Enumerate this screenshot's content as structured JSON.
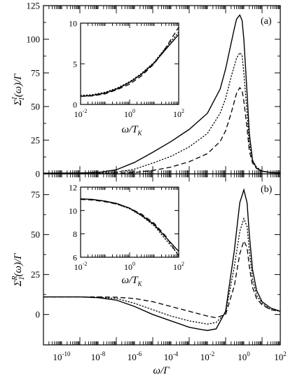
{
  "colors": {
    "ink": "#000000",
    "background": "#ffffff"
  },
  "chart_data": [
    {
      "panel": "a",
      "type": "line",
      "panel_label": "(a)",
      "xlabel": "",
      "ylabel_symbol": "Σ",
      "ylabel_sub": "1",
      "ylabel_sup": "I",
      "ylabel_rest": "(ω)/Γ",
      "x_scale": "log",
      "xlim": [
        1e-11,
        100
      ],
      "ylim": [
        0,
        125
      ],
      "y_ticks": [
        0,
        25,
        50,
        75,
        100,
        125
      ],
      "y_tick_labels": [
        "0",
        "25",
        "50",
        "75",
        "100",
        "125"
      ],
      "series": [
        {
          "style": "solid",
          "x": [
            1e-11,
            1e-09,
            1e-08,
            1e-07,
            1e-06,
            1e-05,
            0.0001,
            0.001,
            0.01,
            0.05,
            0.1,
            0.2,
            0.3,
            0.4,
            0.6,
            0.8,
            1,
            1.5,
            2,
            3,
            5,
            10,
            30,
            100
          ],
          "y": [
            0.5,
            0.6,
            1.0,
            3.0,
            8.5,
            16,
            24,
            33,
            45,
            63,
            78,
            97,
            108,
            115,
            118,
            114,
            100,
            60,
            30,
            10,
            4,
            2,
            1,
            0.5
          ]
        },
        {
          "style": "dotted",
          "x": [
            1e-11,
            1e-09,
            1e-08,
            1e-07,
            1e-06,
            1e-05,
            0.0001,
            0.001,
            0.01,
            0.05,
            0.1,
            0.2,
            0.4,
            0.6,
            0.8,
            1,
            1.5,
            2,
            3,
            5,
            10,
            30,
            100
          ],
          "y": [
            0.3,
            0.3,
            0.5,
            1.2,
            3.5,
            8,
            13,
            20,
            30,
            45,
            56,
            72,
            86,
            90,
            88,
            75,
            45,
            22,
            10,
            5,
            2,
            1,
            0.5
          ]
        },
        {
          "style": "dashed",
          "x": [
            1e-11,
            1e-08,
            1e-07,
            1e-06,
            1e-05,
            0.0001,
            0.001,
            0.01,
            0.05,
            0.1,
            0.2,
            0.4,
            0.6,
            0.8,
            1,
            1.5,
            2,
            3,
            5,
            10,
            30,
            100
          ],
          "y": [
            0.2,
            0.2,
            0.4,
            1.0,
            2.5,
            5,
            9,
            15,
            24,
            32,
            45,
            60,
            64,
            62,
            54,
            34,
            17,
            8,
            4,
            2,
            1,
            0.5
          ]
        }
      ],
      "inset": {
        "xlabel_symbol": "ω",
        "xlabel_rest": "/T",
        "xlabel_sub": "K",
        "x_scale": "log",
        "xlim": [
          0.01,
          100
        ],
        "ylim": [
          0,
          10
        ],
        "x_tick_mantissa": [
          "10",
          "10",
          "10"
        ],
        "x_tick_exponents": [
          "-2",
          "0",
          "2"
        ],
        "y_ticks": [
          0,
          5,
          10
        ],
        "y_tick_labels": [
          "0",
          "5",
          "10"
        ],
        "series": [
          {
            "style": "solid",
            "x": [
              0.01,
              0.03,
              0.1,
              0.3,
              1,
              3,
              10,
              30,
              100
            ],
            "y": [
              1.0,
              1.1,
              1.4,
              1.9,
              2.7,
              3.7,
              5.1,
              6.8,
              8.6
            ]
          },
          {
            "style": "dotted",
            "x": [
              0.01,
              0.03,
              0.1,
              0.3,
              1,
              3,
              10,
              30,
              100
            ],
            "y": [
              1.1,
              1.2,
              1.5,
              2.0,
              2.8,
              3.8,
              5.2,
              7.0,
              8.9
            ]
          },
          {
            "style": "dashed",
            "x": [
              0.01,
              0.03,
              0.1,
              0.3,
              1,
              3,
              10,
              30,
              100
            ],
            "y": [
              1.0,
              1.05,
              1.3,
              1.8,
              2.5,
              3.5,
              5.0,
              7.0,
              9.5
            ]
          }
        ]
      }
    },
    {
      "panel": "b",
      "type": "line",
      "panel_label": "(b)",
      "xlabel_symbol": "ω",
      "xlabel_rest": "/Γ",
      "ylabel_symbol": "Σ",
      "ylabel_sub": "1",
      "ylabel_sup": "R",
      "ylabel_rest": "(ω)/Γ",
      "x_scale": "log",
      "xlim": [
        1e-11,
        100
      ],
      "ylim": [
        -19,
        88
      ],
      "x_tick_mantissa": [
        "10",
        "10",
        "10",
        "10",
        "10",
        "10",
        "10"
      ],
      "x_tick_exponents": [
        "-10",
        "-8",
        "-6",
        "-4",
        "-2",
        "0",
        "2"
      ],
      "x_ticks": [
        1e-10,
        1e-08,
        1e-06,
        0.0001,
        0.01,
        1,
        100
      ],
      "y_ticks": [
        0,
        25,
        50,
        75
      ],
      "y_tick_labels": [
        "0",
        "25",
        "50",
        "75"
      ],
      "series": [
        {
          "style": "solid",
          "x": [
            1e-11,
            1e-09,
            1e-08,
            1e-07,
            1e-06,
            1e-05,
            0.0001,
            0.001,
            0.005,
            0.01,
            0.03,
            0.1,
            0.3,
            0.6,
            1,
            1.5,
            2,
            3,
            5,
            10,
            30,
            100
          ],
          "y": [
            11,
            11,
            10.5,
            9,
            5,
            0,
            -4,
            -8,
            -9.5,
            -10,
            -9,
            2,
            40,
            70,
            78,
            70,
            50,
            28,
            15,
            8,
            4,
            2
          ]
        },
        {
          "style": "dotted",
          "x": [
            1e-11,
            1e-09,
            1e-08,
            1e-07,
            1e-06,
            1e-05,
            0.0001,
            0.001,
            0.01,
            0.03,
            0.1,
            0.3,
            0.6,
            1,
            1.5,
            2,
            3,
            5,
            10,
            30,
            100
          ],
          "y": [
            11,
            11,
            10.8,
            10,
            7,
            3,
            -1,
            -4,
            -6,
            -5,
            1,
            30,
            52,
            60,
            55,
            40,
            22,
            12,
            7,
            3,
            2
          ]
        },
        {
          "style": "dashed",
          "x": [
            1e-11,
            1e-09,
            1e-08,
            1e-07,
            1e-06,
            1e-05,
            0.0001,
            0.001,
            0.01,
            0.03,
            0.1,
            0.3,
            0.6,
            1,
            1.5,
            2,
            3,
            5,
            10,
            30,
            100
          ],
          "y": [
            11,
            11,
            11,
            10.8,
            10,
            8,
            5,
            2,
            -1,
            -2,
            0,
            18,
            38,
            46,
            42,
            30,
            17,
            10,
            6,
            3,
            2
          ]
        }
      ],
      "inset": {
        "xlabel_symbol": "ω",
        "xlabel_rest": "/T",
        "xlabel_sub": "K",
        "x_scale": "log",
        "xlim": [
          0.01,
          100
        ],
        "ylim": [
          6,
          12
        ],
        "x_tick_mantissa": [
          "10",
          "10",
          "10"
        ],
        "x_tick_exponents": [
          "-2",
          "0",
          "2"
        ],
        "y_ticks": [
          6,
          8,
          10,
          12
        ],
        "y_tick_labels": [
          "6",
          "8",
          "10",
          "12"
        ],
        "series": [
          {
            "style": "solid",
            "x": [
              0.01,
              0.03,
              0.1,
              0.3,
              1,
              3,
              10,
              30,
              100
            ],
            "y": [
              11.0,
              10.95,
              10.8,
              10.6,
              10.2,
              9.6,
              8.8,
              7.7,
              6.5
            ]
          },
          {
            "style": "dotted",
            "x": [
              0.01,
              0.03,
              0.1,
              0.3,
              1,
              3,
              10,
              30,
              100
            ],
            "y": [
              11.0,
              10.95,
              10.8,
              10.55,
              10.15,
              9.55,
              8.7,
              7.5,
              6.2
            ]
          },
          {
            "style": "dashed",
            "x": [
              0.01,
              0.03,
              0.1,
              0.3,
              1,
              3,
              10,
              30,
              100
            ],
            "y": [
              10.95,
              10.9,
              10.75,
              10.55,
              10.2,
              9.7,
              8.9,
              7.8,
              6.1
            ]
          }
        ]
      }
    }
  ]
}
